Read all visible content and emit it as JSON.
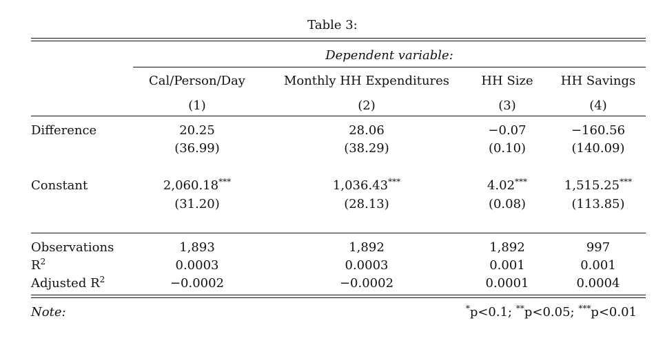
{
  "table": {
    "caption": "Table 3:",
    "dep_var_label": "Dependent variable:",
    "columns": [
      {
        "name": "Cal/Person/Day",
        "num": "(1)"
      },
      {
        "name": "Monthly HH Expenditures",
        "num": "(2)"
      },
      {
        "name": "HH Size",
        "num": "(3)"
      },
      {
        "name": "HH Savings",
        "num": "(4)"
      }
    ],
    "rows": {
      "difference": {
        "label": "Difference",
        "coefs": [
          "20.25",
          "28.06",
          "−0.07",
          "−160.56"
        ],
        "coef_stars": [
          "",
          "",
          "",
          ""
        ],
        "ses": [
          "(36.99)",
          "(38.29)",
          "(0.10)",
          "(140.09)"
        ]
      },
      "constant": {
        "label": "Constant",
        "coefs": [
          "2,060.18",
          "1,036.43",
          "4.02",
          "1,515.25"
        ],
        "coef_stars": [
          "***",
          "***",
          "***",
          "***"
        ],
        "ses": [
          "(31.20)",
          "(28.13)",
          "(0.08)",
          "(113.85)"
        ]
      }
    },
    "stats": {
      "observations": {
        "label": "Observations",
        "values": [
          "1,893",
          "1,892",
          "1,892",
          "997"
        ]
      },
      "r2": {
        "label_main": "R",
        "label_sup": "2",
        "values": [
          "0.0003",
          "0.0003",
          "0.001",
          "0.001"
        ]
      },
      "adj_r2": {
        "label_main": "Adjusted R",
        "label_sup": "2",
        "values": [
          "−0.0002",
          "−0.0002",
          "0.0001",
          "0.0004"
        ]
      }
    },
    "note": {
      "label": "Note:",
      "star1": "*",
      "text1": "p<0.1; ",
      "star2": "**",
      "text2": "p<0.05; ",
      "star3": "***",
      "text3": "p<0.01"
    }
  }
}
